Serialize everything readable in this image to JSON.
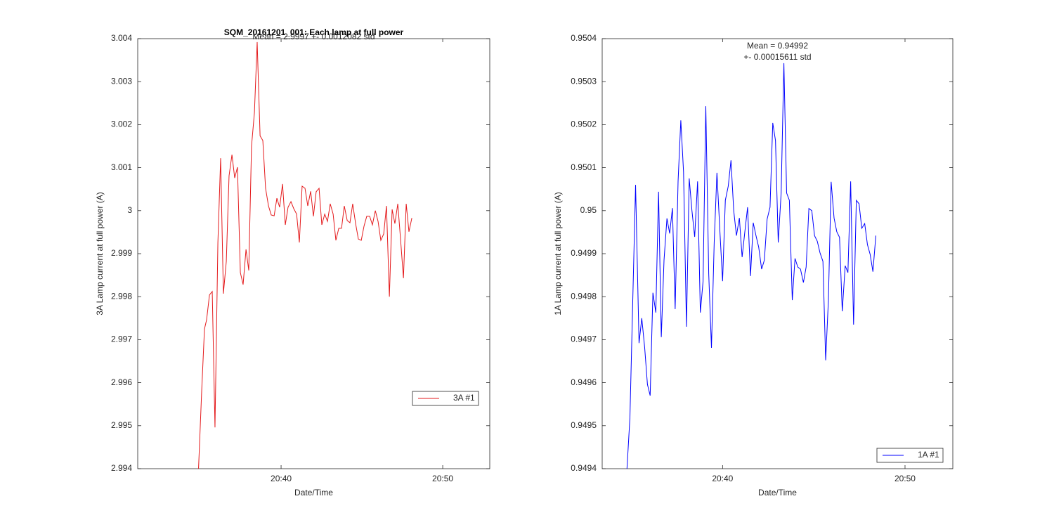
{
  "chart_data": [
    {
      "type": "line",
      "title": "SQM_20161201_001: Each lamp at full power",
      "annotation": [
        "Mean = 2.9997 +- 0.0012082 std"
      ],
      "xlabel": "Date/Time",
      "ylabel": "3A Lamp current at full power (A)",
      "xlim": [
        1231.13,
        1252.91
      ],
      "ylim": [
        2.994,
        3.004
      ],
      "xticks": [
        {
          "value": 1240,
          "label": "20:40"
        },
        {
          "value": 1250,
          "label": "20:50"
        }
      ],
      "yticks": [
        2.994,
        2.995,
        2.996,
        2.997,
        2.998,
        2.999,
        3,
        3.001,
        3.002,
        3.003,
        3.004
      ],
      "legend": "lower right",
      "x": [
        1234.87,
        1235.09,
        1235.26,
        1235.39,
        1235.57,
        1235.74,
        1235.91,
        1236.09,
        1236.26,
        1236.43,
        1236.61,
        1236.78,
        1236.96,
        1237.13,
        1237.3,
        1237.48,
        1237.65,
        1237.83,
        1238.0,
        1238.17,
        1238.35,
        1238.52,
        1238.7,
        1238.87,
        1239.04,
        1239.22,
        1239.39,
        1239.57,
        1239.74,
        1239.91,
        1240.09,
        1240.26,
        1240.43,
        1240.61,
        1240.78,
        1240.96,
        1241.13,
        1241.3,
        1241.48,
        1241.65,
        1241.83,
        1242.0,
        1242.17,
        1242.35,
        1242.52,
        1242.7,
        1242.87,
        1243.04,
        1243.22,
        1243.39,
        1243.57,
        1243.74,
        1243.91,
        1244.09,
        1244.26,
        1244.43,
        1244.61,
        1244.78,
        1244.96,
        1245.13,
        1245.3,
        1245.48,
        1245.65,
        1245.83,
        1246.0,
        1246.17,
        1246.35,
        1246.52,
        1246.7,
        1246.87,
        1247.04,
        1247.22,
        1247.39,
        1247.57,
        1247.74,
        1247.91,
        1248.09
      ],
      "series": [
        {
          "name": "3A #1",
          "color": "#e41a1c",
          "values": [
            2.99379,
            2.99583,
            2.99725,
            2.99746,
            2.99804,
            2.99812,
            2.99496,
            2.99926,
            3.00122,
            2.99807,
            2.99882,
            3.00081,
            3.0013,
            3.00076,
            3.00101,
            2.99856,
            2.99828,
            2.9991,
            2.99861,
            3.0015,
            3.00228,
            3.00392,
            3.00174,
            3.00163,
            3.00052,
            3.00011,
            2.9999,
            2.99988,
            3.00029,
            3.00008,
            3.00062,
            2.99967,
            3.00008,
            3.00021,
            3.00005,
            2.99992,
            2.99926,
            3.00057,
            3.00052,
            3.00011,
            3.00045,
            2.99987,
            3.00044,
            3.00052,
            2.99967,
            2.99992,
            2.99975,
            3.00016,
            2.99992,
            2.99931,
            2.99959,
            2.99959,
            3.00011,
            2.99977,
            2.99972,
            3.00016,
            2.9997,
            2.99934,
            2.99931,
            2.99964,
            2.99987,
            2.99987,
            2.99967,
            3.0,
            2.99975,
            2.99931,
            2.99946,
            3.00011,
            2.998,
            3.00003,
            2.9997,
            3.00016,
            2.99934,
            2.99843,
            3.00016,
            2.99951,
            2.99983
          ]
        }
      ]
    },
    {
      "type": "line",
      "annotation": [
        "Mean = 0.94992",
        "+- 0.00015611 std"
      ],
      "xlabel": "Date/Time",
      "ylabel": "1A Lamp current at full power (A)",
      "xlim": [
        1233.4,
        1252.62
      ],
      "ylim": [
        0.9494,
        0.9504
      ],
      "xticks": [
        {
          "value": 1240,
          "label": "20:40"
        },
        {
          "value": 1250,
          "label": "20:50"
        }
      ],
      "yticks": [
        0.9494,
        0.9495,
        0.9496,
        0.9497,
        0.9498,
        0.9499,
        0.95,
        0.9501,
        0.9502,
        0.9503,
        0.9504
      ],
      "legend": "lower right",
      "x": [
        1234.73,
        1234.92,
        1235.23,
        1235.42,
        1235.57,
        1235.73,
        1235.88,
        1236.03,
        1236.18,
        1236.34,
        1236.49,
        1236.64,
        1236.79,
        1236.95,
        1237.1,
        1237.25,
        1237.4,
        1237.56,
        1237.71,
        1237.86,
        1238.02,
        1238.17,
        1238.32,
        1238.47,
        1238.63,
        1238.78,
        1238.93,
        1239.08,
        1239.24,
        1239.39,
        1239.54,
        1239.69,
        1239.85,
        1240.0,
        1240.15,
        1240.31,
        1240.46,
        1240.61,
        1240.76,
        1240.92,
        1241.07,
        1241.22,
        1241.37,
        1241.53,
        1241.68,
        1241.83,
        1241.98,
        1242.14,
        1242.29,
        1242.44,
        1242.6,
        1242.75,
        1242.9,
        1243.05,
        1243.21,
        1243.36,
        1243.51,
        1243.66,
        1243.82,
        1243.97,
        1244.12,
        1244.27,
        1244.43,
        1244.58,
        1244.73,
        1244.89,
        1245.04,
        1245.19,
        1245.34,
        1245.5,
        1245.65,
        1245.8,
        1245.95,
        1246.11,
        1246.26,
        1246.41,
        1246.56,
        1246.72,
        1246.87,
        1247.02,
        1247.18,
        1247.33,
        1247.48,
        1247.63,
        1247.79,
        1247.94,
        1248.09,
        1248.24,
        1248.4
      ],
      "series": [
        {
          "name": "1A #1",
          "color": "#0000ff",
          "values": [
            0.949379,
            0.949518,
            0.95006,
            0.949692,
            0.94975,
            0.949681,
            0.949596,
            0.94957,
            0.949809,
            0.949763,
            0.950044,
            0.949706,
            0.949885,
            0.949982,
            0.949947,
            0.950006,
            0.949771,
            0.950068,
            0.95021,
            0.95009,
            0.94973,
            0.950075,
            0.95,
            0.949939,
            0.950068,
            0.949763,
            0.949836,
            0.950243,
            0.949853,
            0.949681,
            0.949926,
            0.950088,
            0.949954,
            0.949836,
            0.950024,
            0.950057,
            0.950117,
            0.95,
            0.949942,
            0.949983,
            0.949892,
            0.949951,
            0.950008,
            0.949848,
            0.949972,
            0.949942,
            0.949915,
            0.949864,
            0.949885,
            0.94998,
            0.950008,
            0.950204,
            0.950163,
            0.949926,
            0.950041,
            0.950343,
            0.950041,
            0.950024,
            0.949792,
            0.949889,
            0.949869,
            0.949864,
            0.949833,
            0.949869,
            0.950005,
            0.95,
            0.949942,
            0.949929,
            0.949902,
            0.949882,
            0.949652,
            0.949792,
            0.950067,
            0.949983,
            0.949951,
            0.949938,
            0.949766,
            0.949872,
            0.949856,
            0.950068,
            0.949735,
            0.950024,
            0.950016,
            0.949959,
            0.94997,
            0.949921,
            0.949898,
            0.949858,
            0.949942
          ]
        }
      ]
    }
  ]
}
